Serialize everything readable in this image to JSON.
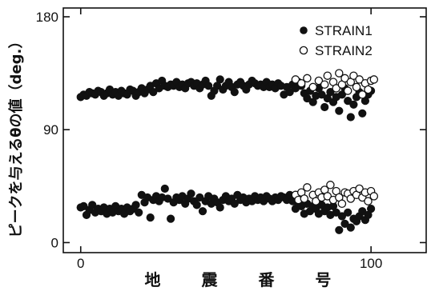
{
  "chart_data": {
    "type": "scatter",
    "xlabel": "地 震 番 号",
    "ylabel": "ピークを与えるθの値（deg.）",
    "xlim": [
      -6,
      119
    ],
    "ylim": [
      -8,
      187
    ],
    "xticks": [
      0,
      100
    ],
    "yticks": [
      0,
      90,
      180
    ],
    "legend_position": "top-right",
    "series": [
      {
        "name": "STRAIN1",
        "marker": "filled-circle",
        "color": "#111111",
        "points": [
          {
            "x": 0,
            "y": 116
          },
          {
            "x": 1,
            "y": 118
          },
          {
            "x": 2,
            "y": 117
          },
          {
            "x": 3,
            "y": 120
          },
          {
            "x": 4,
            "y": 119
          },
          {
            "x": 5,
            "y": 118
          },
          {
            "x": 6,
            "y": 121
          },
          {
            "x": 7,
            "y": 120
          },
          {
            "x": 8,
            "y": 117
          },
          {
            "x": 9,
            "y": 119
          },
          {
            "x": 10,
            "y": 122
          },
          {
            "x": 11,
            "y": 118
          },
          {
            "x": 12,
            "y": 120
          },
          {
            "x": 13,
            "y": 117
          },
          {
            "x": 14,
            "y": 121
          },
          {
            "x": 15,
            "y": 119
          },
          {
            "x": 16,
            "y": 118
          },
          {
            "x": 17,
            "y": 122
          },
          {
            "x": 18,
            "y": 121
          },
          {
            "x": 19,
            "y": 117
          },
          {
            "x": 20,
            "y": 120
          },
          {
            "x": 21,
            "y": 123
          },
          {
            "x": 22,
            "y": 119
          },
          {
            "x": 23,
            "y": 122
          },
          {
            "x": 24,
            "y": 125
          },
          {
            "x": 25,
            "y": 120
          },
          {
            "x": 26,
            "y": 127
          },
          {
            "x": 27,
            "y": 123
          },
          {
            "x": 28,
            "y": 129
          },
          {
            "x": 29,
            "y": 125
          },
          {
            "x": 30,
            "y": 124
          },
          {
            "x": 31,
            "y": 126
          },
          {
            "x": 32,
            "y": 125
          },
          {
            "x": 33,
            "y": 128
          },
          {
            "x": 34,
            "y": 124
          },
          {
            "x": 35,
            "y": 126
          },
          {
            "x": 36,
            "y": 123
          },
          {
            "x": 37,
            "y": 127
          },
          {
            "x": 38,
            "y": 128
          },
          {
            "x": 39,
            "y": 125
          },
          {
            "x": 40,
            "y": 127
          },
          {
            "x": 41,
            "y": 123
          },
          {
            "x": 42,
            "y": 126
          },
          {
            "x": 43,
            "y": 129
          },
          {
            "x": 44,
            "y": 125
          },
          {
            "x": 45,
            "y": 117
          },
          {
            "x": 46,
            "y": 121
          },
          {
            "x": 47,
            "y": 125
          },
          {
            "x": 48,
            "y": 130
          },
          {
            "x": 49,
            "y": 122
          },
          {
            "x": 50,
            "y": 125
          },
          {
            "x": 51,
            "y": 128
          },
          {
            "x": 52,
            "y": 124
          },
          {
            "x": 53,
            "y": 120
          },
          {
            "x": 54,
            "y": 126
          },
          {
            "x": 55,
            "y": 128
          },
          {
            "x": 56,
            "y": 125
          },
          {
            "x": 57,
            "y": 122
          },
          {
            "x": 58,
            "y": 126
          },
          {
            "x": 59,
            "y": 129
          },
          {
            "x": 60,
            "y": 127
          },
          {
            "x": 61,
            "y": 125
          },
          {
            "x": 62,
            "y": 126
          },
          {
            "x": 63,
            "y": 124
          },
          {
            "x": 64,
            "y": 128
          },
          {
            "x": 65,
            "y": 124
          },
          {
            "x": 66,
            "y": 126
          },
          {
            "x": 67,
            "y": 123
          },
          {
            "x": 68,
            "y": 127
          },
          {
            "x": 69,
            "y": 125
          },
          {
            "x": 70,
            "y": 118
          },
          {
            "x": 71,
            "y": 124
          },
          {
            "x": 72,
            "y": 120
          },
          {
            "x": 73,
            "y": 126
          },
          {
            "x": 74,
            "y": 123
          },
          {
            "x": 75,
            "y": 128
          },
          {
            "x": 76,
            "y": 125
          },
          {
            "x": 77,
            "y": 119
          },
          {
            "x": 78,
            "y": 115
          },
          {
            "x": 79,
            "y": 121
          },
          {
            "x": 80,
            "y": 112
          },
          {
            "x": 81,
            "y": 117
          },
          {
            "x": 82,
            "y": 123
          },
          {
            "x": 83,
            "y": 118
          },
          {
            "x": 84,
            "y": 108
          },
          {
            "x": 85,
            "y": 115
          },
          {
            "x": 86,
            "y": 120
          },
          {
            "x": 87,
            "y": 112
          },
          {
            "x": 88,
            "y": 116
          },
          {
            "x": 89,
            "y": 105
          },
          {
            "x": 90,
            "y": 118
          },
          {
            "x": 91,
            "y": 123
          },
          {
            "x": 92,
            "y": 113
          },
          {
            "x": 93,
            "y": 100
          },
          {
            "x": 94,
            "y": 110
          },
          {
            "x": 95,
            "y": 116
          },
          {
            "x": 96,
            "y": 120
          },
          {
            "x": 97,
            "y": 103
          },
          {
            "x": 98,
            "y": 113
          },
          {
            "x": 99,
            "y": 118
          },
          {
            "x": 100,
            "y": 121
          },
          {
            "x": 0,
            "y": 28
          },
          {
            "x": 1,
            "y": 29
          },
          {
            "x": 2,
            "y": 22
          },
          {
            "x": 3,
            "y": 26
          },
          {
            "x": 4,
            "y": 30
          },
          {
            "x": 5,
            "y": 24
          },
          {
            "x": 6,
            "y": 27
          },
          {
            "x": 7,
            "y": 25
          },
          {
            "x": 8,
            "y": 28
          },
          {
            "x": 9,
            "y": 23
          },
          {
            "x": 10,
            "y": 27
          },
          {
            "x": 11,
            "y": 24
          },
          {
            "x": 12,
            "y": 29
          },
          {
            "x": 13,
            "y": 25
          },
          {
            "x": 14,
            "y": 27
          },
          {
            "x": 15,
            "y": 23
          },
          {
            "x": 16,
            "y": 28
          },
          {
            "x": 17,
            "y": 25
          },
          {
            "x": 18,
            "y": 27
          },
          {
            "x": 19,
            "y": 30
          },
          {
            "x": 20,
            "y": 24
          },
          {
            "x": 21,
            "y": 38
          },
          {
            "x": 22,
            "y": 32
          },
          {
            "x": 23,
            "y": 36
          },
          {
            "x": 24,
            "y": 20
          },
          {
            "x": 25,
            "y": 34
          },
          {
            "x": 26,
            "y": 37
          },
          {
            "x": 27,
            "y": 33
          },
          {
            "x": 28,
            "y": 36
          },
          {
            "x": 29,
            "y": 43
          },
          {
            "x": 30,
            "y": 35
          },
          {
            "x": 31,
            "y": 19
          },
          {
            "x": 32,
            "y": 32
          },
          {
            "x": 33,
            "y": 36
          },
          {
            "x": 34,
            "y": 34
          },
          {
            "x": 35,
            "y": 37
          },
          {
            "x": 36,
            "y": 31
          },
          {
            "x": 37,
            "y": 35
          },
          {
            "x": 38,
            "y": 39
          },
          {
            "x": 39,
            "y": 33
          },
          {
            "x": 40,
            "y": 30
          },
          {
            "x": 41,
            "y": 36
          },
          {
            "x": 42,
            "y": 25
          },
          {
            "x": 43,
            "y": 33
          },
          {
            "x": 44,
            "y": 37
          },
          {
            "x": 45,
            "y": 31
          },
          {
            "x": 46,
            "y": 35
          },
          {
            "x": 47,
            "y": 32
          },
          {
            "x": 48,
            "y": 28
          },
          {
            "x": 49,
            "y": 34
          },
          {
            "x": 50,
            "y": 37
          },
          {
            "x": 51,
            "y": 33
          },
          {
            "x": 52,
            "y": 35
          },
          {
            "x": 53,
            "y": 31
          },
          {
            "x": 54,
            "y": 38
          },
          {
            "x": 55,
            "y": 34
          },
          {
            "x": 56,
            "y": 36
          },
          {
            "x": 57,
            "y": 32
          },
          {
            "x": 58,
            "y": 35
          },
          {
            "x": 59,
            "y": 33
          },
          {
            "x": 60,
            "y": 37
          },
          {
            "x": 61,
            "y": 34
          },
          {
            "x": 62,
            "y": 36
          },
          {
            "x": 63,
            "y": 33
          },
          {
            "x": 64,
            "y": 37
          },
          {
            "x": 65,
            "y": 35
          },
          {
            "x": 66,
            "y": 33
          },
          {
            "x": 67,
            "y": 36
          },
          {
            "x": 68,
            "y": 34
          },
          {
            "x": 69,
            "y": 37
          },
          {
            "x": 70,
            "y": 36
          },
          {
            "x": 71,
            "y": 34
          },
          {
            "x": 72,
            "y": 38
          },
          {
            "x": 73,
            "y": 33
          },
          {
            "x": 74,
            "y": 27
          },
          {
            "x": 75,
            "y": 31
          },
          {
            "x": 76,
            "y": 29
          },
          {
            "x": 77,
            "y": 23
          },
          {
            "x": 78,
            "y": 31
          },
          {
            "x": 79,
            "y": 25
          },
          {
            "x": 80,
            "y": 29
          },
          {
            "x": 81,
            "y": 27
          },
          {
            "x": 82,
            "y": 23
          },
          {
            "x": 83,
            "y": 30
          },
          {
            "x": 84,
            "y": 25
          },
          {
            "x": 85,
            "y": 28
          },
          {
            "x": 86,
            "y": 22
          },
          {
            "x": 87,
            "y": 29
          },
          {
            "x": 88,
            "y": 24
          },
          {
            "x": 89,
            "y": 10
          },
          {
            "x": 90,
            "y": 21
          },
          {
            "x": 91,
            "y": 15
          },
          {
            "x": 92,
            "y": 24
          },
          {
            "x": 93,
            "y": 12
          },
          {
            "x": 94,
            "y": 19
          },
          {
            "x": 95,
            "y": 17
          },
          {
            "x": 96,
            "y": 21
          },
          {
            "x": 97,
            "y": 25
          },
          {
            "x": 98,
            "y": 18
          },
          {
            "x": 99,
            "y": 22
          },
          {
            "x": 100,
            "y": 27
          }
        ]
      },
      {
        "name": "STRAIN2",
        "marker": "open-circle",
        "color": "#111111",
        "points": [
          {
            "x": 74,
            "y": 130
          },
          {
            "x": 76,
            "y": 127
          },
          {
            "x": 78,
            "y": 131
          },
          {
            "x": 80,
            "y": 124
          },
          {
            "x": 82,
            "y": 129
          },
          {
            "x": 84,
            "y": 126
          },
          {
            "x": 85,
            "y": 133
          },
          {
            "x": 87,
            "y": 128
          },
          {
            "x": 88,
            "y": 123
          },
          {
            "x": 89,
            "y": 135
          },
          {
            "x": 90,
            "y": 126
          },
          {
            "x": 91,
            "y": 131
          },
          {
            "x": 92,
            "y": 121
          },
          {
            "x": 93,
            "y": 128
          },
          {
            "x": 94,
            "y": 133
          },
          {
            "x": 95,
            "y": 124
          },
          {
            "x": 96,
            "y": 130
          },
          {
            "x": 97,
            "y": 118
          },
          {
            "x": 98,
            "y": 127
          },
          {
            "x": 99,
            "y": 122
          },
          {
            "x": 100,
            "y": 129
          },
          {
            "x": 101,
            "y": 130
          },
          {
            "x": 74,
            "y": 38
          },
          {
            "x": 75,
            "y": 34
          },
          {
            "x": 76,
            "y": 40
          },
          {
            "x": 77,
            "y": 35
          },
          {
            "x": 78,
            "y": 44
          },
          {
            "x": 80,
            "y": 38
          },
          {
            "x": 81,
            "y": 33
          },
          {
            "x": 82,
            "y": 40
          },
          {
            "x": 83,
            "y": 36
          },
          {
            "x": 84,
            "y": 42
          },
          {
            "x": 85,
            "y": 37
          },
          {
            "x": 86,
            "y": 46
          },
          {
            "x": 87,
            "y": 34
          },
          {
            "x": 88,
            "y": 41
          },
          {
            "x": 89,
            "y": 36
          },
          {
            "x": 90,
            "y": 31
          },
          {
            "x": 91,
            "y": 40
          },
          {
            "x": 92,
            "y": 39
          },
          {
            "x": 93,
            "y": 35
          },
          {
            "x": 94,
            "y": 41
          },
          {
            "x": 95,
            "y": 38
          },
          {
            "x": 96,
            "y": 43
          },
          {
            "x": 97,
            "y": 36
          },
          {
            "x": 98,
            "y": 40
          },
          {
            "x": 99,
            "y": 33
          },
          {
            "x": 100,
            "y": 41
          },
          {
            "x": 101,
            "y": 37
          }
        ]
      }
    ]
  }
}
